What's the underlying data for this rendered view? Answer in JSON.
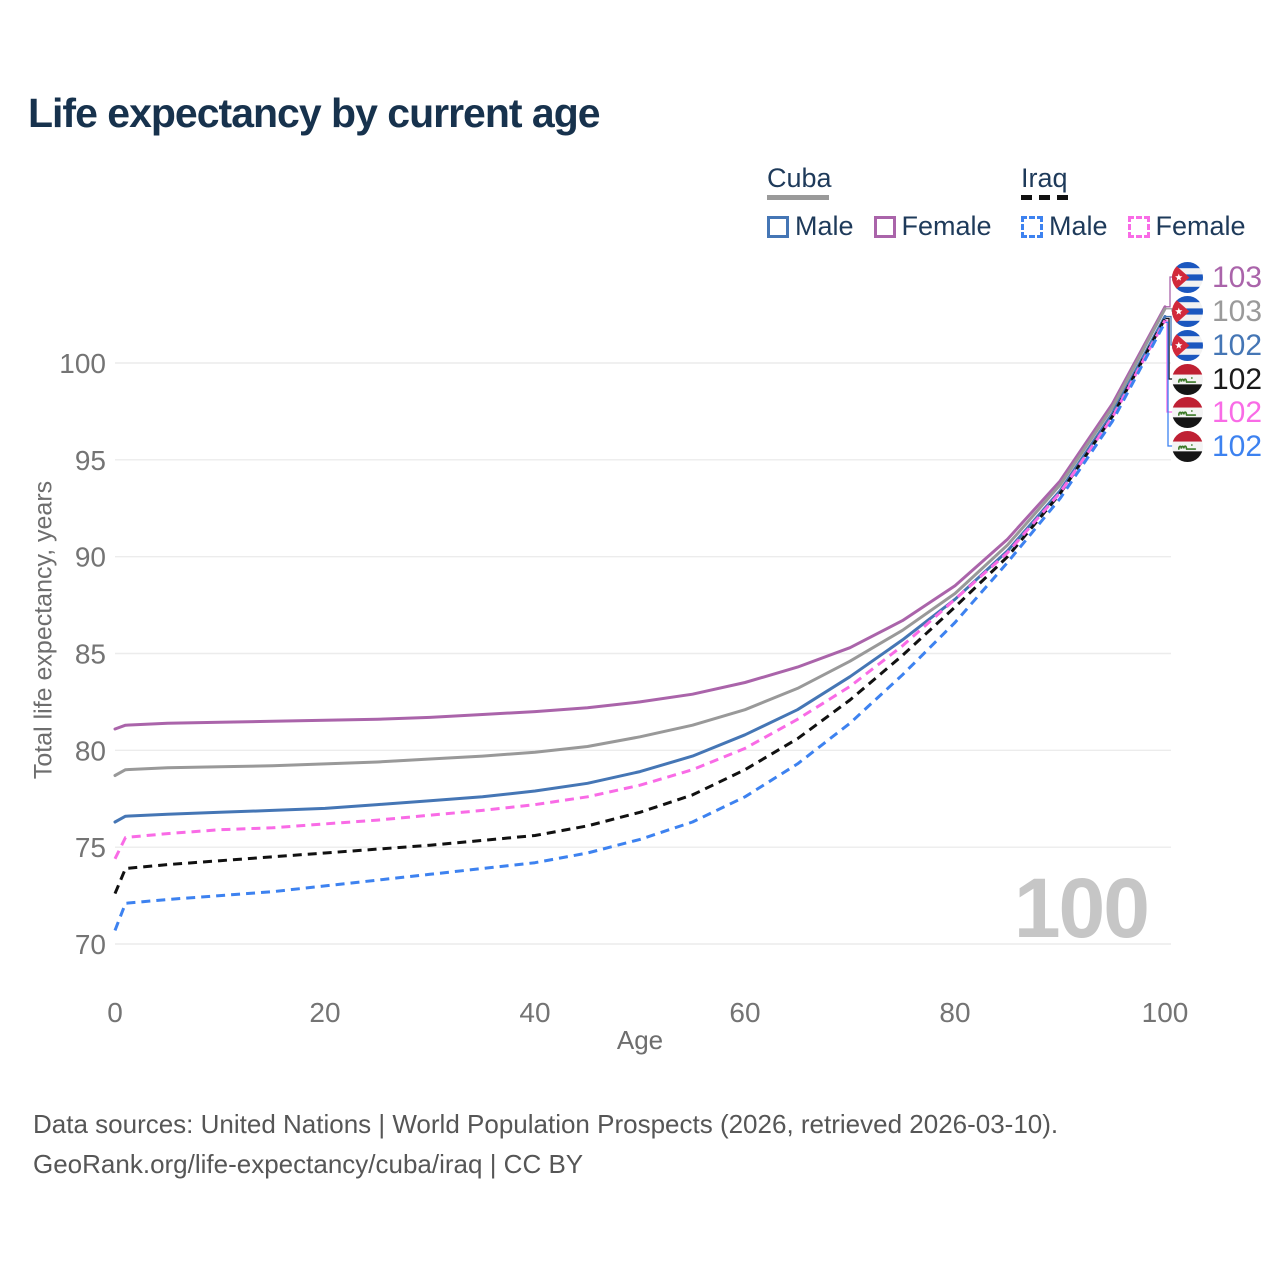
{
  "title": "Life expectancy by current age",
  "legend": {
    "cuba": {
      "label": "Cuba",
      "male_label": "Male",
      "female_label": "Female"
    },
    "iraq": {
      "label": "Iraq",
      "male_label": "Male",
      "female_label": "Female"
    }
  },
  "axes": {
    "x_label": "Age",
    "y_label": "Total life expectancy, years",
    "x_ticks": [
      "0",
      "20",
      "40",
      "60",
      "80",
      "100"
    ],
    "y_ticks": [
      "70",
      "75",
      "80",
      "85",
      "90",
      "95",
      "100"
    ]
  },
  "watermark": {
    "text": "100"
  },
  "footer": {
    "line1": "Data sources: United Nations | World Population Prospects (2026, retrieved 2026-03-10).",
    "line2": "GeoRank.org/life-expectancy/cuba/iraq | CC BY"
  },
  "colors": {
    "title": "#17324d",
    "cuba_male": "#4576b5",
    "cuba_female": "#aa64aa",
    "cuba_all": "#999999",
    "iraq_male": "#3d82f0",
    "iraq_female": "#f96be6",
    "iraq_all": "#111111",
    "gridline": "#ececec",
    "tick_text": "#747474",
    "watermark": "#c6c6c6"
  },
  "chart_data": {
    "type": "line",
    "title": "Life expectancy by current age",
    "xlabel": "Age",
    "ylabel": "Total life expectancy, years",
    "xlim": [
      0,
      100
    ],
    "ylim": [
      70,
      103.5
    ],
    "x_ticks": [
      0,
      20,
      40,
      60,
      80,
      100
    ],
    "y_ticks": [
      70,
      75,
      80,
      85,
      90,
      95,
      100
    ],
    "grid": "horizontal-only",
    "legend_position": "top-right",
    "x": [
      0,
      1,
      5,
      10,
      15,
      20,
      25,
      30,
      35,
      40,
      45,
      50,
      55,
      60,
      65,
      70,
      75,
      80,
      85,
      90,
      95,
      100
    ],
    "series": [
      {
        "name": "Cuba Female",
        "country": "Cuba",
        "sex": "Female",
        "color": "#aa64aa",
        "dash": false,
        "values": [
          81.1,
          81.3,
          81.4,
          81.45,
          81.5,
          81.55,
          81.6,
          81.7,
          81.85,
          82.0,
          82.2,
          82.5,
          82.9,
          83.5,
          84.3,
          85.3,
          86.7,
          88.5,
          90.9,
          93.9,
          97.9,
          102.9
        ]
      },
      {
        "name": "Cuba Both sexes",
        "country": "Cuba",
        "sex": "All",
        "color": "#999999",
        "dash": false,
        "values": [
          78.7,
          79.0,
          79.1,
          79.15,
          79.2,
          79.3,
          79.4,
          79.55,
          79.7,
          79.9,
          80.2,
          80.7,
          81.3,
          82.1,
          83.2,
          84.6,
          86.2,
          88.1,
          90.6,
          93.7,
          97.7,
          102.8
        ]
      },
      {
        "name": "Cuba Male",
        "country": "Cuba",
        "sex": "Male",
        "color": "#4576b5",
        "dash": false,
        "values": [
          76.3,
          76.6,
          76.7,
          76.8,
          76.9,
          77.0,
          77.2,
          77.4,
          77.6,
          77.9,
          78.3,
          78.9,
          79.7,
          80.8,
          82.1,
          83.8,
          85.7,
          87.8,
          90.3,
          93.4,
          97.4,
          102.4
        ]
      },
      {
        "name": "Iraq Both sexes",
        "country": "Iraq",
        "sex": "All",
        "color": "#111111",
        "dash": true,
        "values": [
          72.6,
          73.9,
          74.1,
          74.3,
          74.5,
          74.7,
          74.9,
          75.1,
          75.35,
          75.6,
          76.1,
          76.8,
          77.7,
          79.0,
          80.6,
          82.6,
          84.9,
          87.4,
          90.0,
          93.25,
          97.25,
          102.3
        ]
      },
      {
        "name": "Iraq Female",
        "country": "Iraq",
        "sex": "Female",
        "color": "#f96be6",
        "dash": true,
        "values": [
          74.4,
          75.5,
          75.7,
          75.9,
          76.0,
          76.2,
          76.4,
          76.65,
          76.9,
          77.2,
          77.6,
          78.2,
          79.0,
          80.1,
          81.6,
          83.3,
          85.4,
          87.8,
          90.2,
          93.3,
          97.2,
          102.2
        ]
      },
      {
        "name": "Iraq Male",
        "country": "Iraq",
        "sex": "Male",
        "color": "#3d82f0",
        "dash": true,
        "values": [
          70.7,
          72.1,
          72.3,
          72.5,
          72.7,
          73.0,
          73.3,
          73.6,
          73.9,
          74.2,
          74.7,
          75.4,
          76.3,
          77.6,
          79.3,
          81.4,
          83.9,
          86.6,
          89.7,
          93.0,
          97.0,
          102.1
        ]
      }
    ],
    "end_labels": [
      {
        "value": "103",
        "color": "#aa64aa",
        "flag": "cuba",
        "series": "Cuba Female"
      },
      {
        "value": "103",
        "color": "#9a9a9a",
        "flag": "cuba",
        "series": "Cuba Both sexes"
      },
      {
        "value": "102",
        "color": "#4576b5",
        "flag": "cuba",
        "series": "Cuba Male"
      },
      {
        "value": "102",
        "color": "#1a1a1a",
        "flag": "iraq",
        "series": "Iraq Both sexes"
      },
      {
        "value": "102",
        "color": "#f96be6",
        "flag": "iraq",
        "series": "Iraq Female"
      },
      {
        "value": "102",
        "color": "#3d82f0",
        "flag": "iraq",
        "series": "Iraq Male"
      }
    ]
  }
}
